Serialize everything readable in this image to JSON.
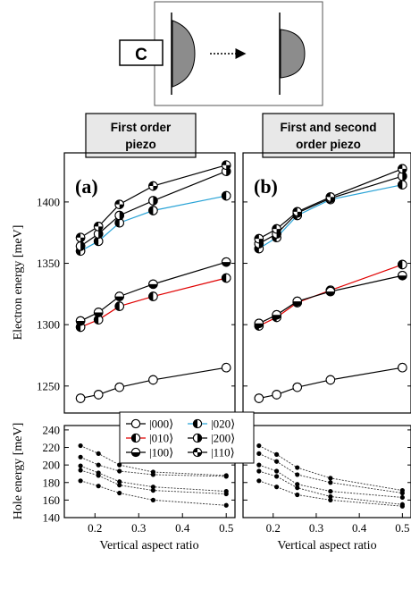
{
  "header": {
    "label": "C",
    "bar_titles": [
      "First order piezo",
      "First and second order piezo"
    ],
    "bar_titles_lines": [
      [
        "First order",
        "piezo"
      ],
      [
        "First and second",
        "order piezo"
      ]
    ]
  },
  "legend": {
    "entries": [
      {
        "label": "|000⟩",
        "marker": "open",
        "line_color": "#000000"
      },
      {
        "label": "|020⟩",
        "marker": "half-left",
        "line_color": "#29a3d6"
      },
      {
        "label": "|010⟩",
        "marker": "half-left",
        "line_color": "#e00000"
      },
      {
        "label": "|200⟩",
        "marker": "half-right",
        "line_color": "#000000"
      },
      {
        "label": "|100⟩",
        "marker": "half-bottom",
        "line_color": "#000000"
      },
      {
        "label": "|110⟩",
        "marker": "quarters",
        "line_color": "#000000"
      }
    ]
  },
  "chart_data": [
    {
      "id": "a",
      "type": "line",
      "panel_label": "(a)",
      "ylabel": "Electron energy [meV]",
      "ylim": [
        1228,
        1440
      ],
      "yticks": [
        1250,
        1300,
        1350,
        1400
      ],
      "xlim": [
        0.13,
        0.52
      ],
      "x": [
        0.167,
        0.208,
        0.256,
        0.333,
        0.5
      ],
      "series": [
        {
          "name": "|000⟩",
          "values": [
            1240,
            1243,
            1249,
            1255,
            1265
          ],
          "marker": "open",
          "color": "#000000"
        },
        {
          "name": "|010⟩",
          "values": [
            1298,
            1304,
            1315,
            1323,
            1338
          ],
          "marker": "half-left",
          "color": "#e00000"
        },
        {
          "name": "|100⟩",
          "values": [
            1303,
            1310,
            1323,
            1333,
            1351
          ],
          "marker": "half-bottom",
          "color": "#000000"
        },
        {
          "name": "|020⟩",
          "values": [
            1360,
            1368,
            1383,
            1393,
            1405
          ],
          "marker": "half-left",
          "color": "#29a3d6"
        },
        {
          "name": "|200⟩",
          "values": [
            1364,
            1374,
            1389,
            1401,
            1425
          ],
          "marker": "half-right",
          "color": "#000000"
        },
        {
          "name": "|110⟩",
          "values": [
            1371,
            1380,
            1398,
            1413,
            1430
          ],
          "marker": "quarters",
          "color": "#000000"
        }
      ]
    },
    {
      "id": "b",
      "type": "line",
      "panel_label": "(b)",
      "ylim": [
        1228,
        1440
      ],
      "yticks": [
        1250,
        1300,
        1350,
        1400
      ],
      "xlim": [
        0.13,
        0.52
      ],
      "x": [
        0.167,
        0.208,
        0.256,
        0.333,
        0.5
      ],
      "series": [
        {
          "name": "|000⟩",
          "values": [
            1240,
            1243,
            1249,
            1255,
            1265
          ],
          "marker": "open",
          "color": "#000000"
        },
        {
          "name": "|010⟩",
          "values": [
            1299,
            1306,
            1318,
            1328,
            1349
          ],
          "marker": "half-left",
          "color": "#e00000"
        },
        {
          "name": "|100⟩",
          "values": [
            1301,
            1308,
            1319,
            1327,
            1340
          ],
          "marker": "half-bottom",
          "color": "#000000"
        },
        {
          "name": "|020⟩",
          "values": [
            1362,
            1371,
            1389,
            1402,
            1414
          ],
          "marker": "half-left",
          "color": "#29a3d6"
        },
        {
          "name": "|200⟩",
          "values": [
            1366,
            1374,
            1391,
            1403,
            1421
          ],
          "marker": "half-right",
          "color": "#000000"
        },
        {
          "name": "|110⟩",
          "values": [
            1370,
            1378,
            1392,
            1404,
            1427
          ],
          "marker": "quarters",
          "color": "#000000"
        }
      ]
    },
    {
      "id": "c",
      "type": "line",
      "ylabel": "Hole energy [meV]",
      "xlabel": "Vertical aspect ratio",
      "ylim": [
        140,
        245
      ],
      "yticks": [
        140,
        160,
        180,
        200,
        220,
        240
      ],
      "xlim": [
        0.13,
        0.52
      ],
      "xticks": [
        0.2,
        0.3,
        0.4,
        0.5
      ],
      "xtick_labels": [
        "0.2",
        "0.3",
        "0.4",
        "0.5"
      ],
      "x": [
        0.167,
        0.208,
        0.256,
        0.333,
        0.5
      ],
      "series": [
        {
          "values": [
            222,
            213,
            200,
            192,
            188
          ]
        },
        {
          "values": [
            209,
            200,
            193,
            189,
            187
          ]
        },
        {
          "values": [
            199,
            191,
            181,
            175,
            170
          ]
        },
        {
          "values": [
            194,
            188,
            177,
            171,
            167
          ]
        },
        {
          "values": [
            182,
            176,
            168,
            160,
            154
          ]
        }
      ]
    },
    {
      "id": "d",
      "type": "line",
      "xlabel": "Vertical aspect ratio",
      "ylim": [
        140,
        245
      ],
      "yticks": [
        140,
        160,
        180,
        200,
        220,
        240
      ],
      "xlim": [
        0.13,
        0.52
      ],
      "xticks": [
        0.2,
        0.3,
        0.4,
        0.5
      ],
      "xtick_labels": [
        "0.2",
        "0.3",
        "0.4",
        "0.5"
      ],
      "x": [
        0.167,
        0.208,
        0.256,
        0.333,
        0.5
      ],
      "series": [
        {
          "values": [
            222,
            212,
            197,
            185,
            171
          ]
        },
        {
          "values": [
            213,
            204,
            189,
            180,
            168
          ]
        },
        {
          "values": [
            200,
            193,
            178,
            170,
            163
          ]
        },
        {
          "values": [
            193,
            187,
            174,
            164,
            155
          ]
        },
        {
          "values": [
            182,
            175,
            166,
            160,
            153
          ]
        }
      ]
    }
  ]
}
